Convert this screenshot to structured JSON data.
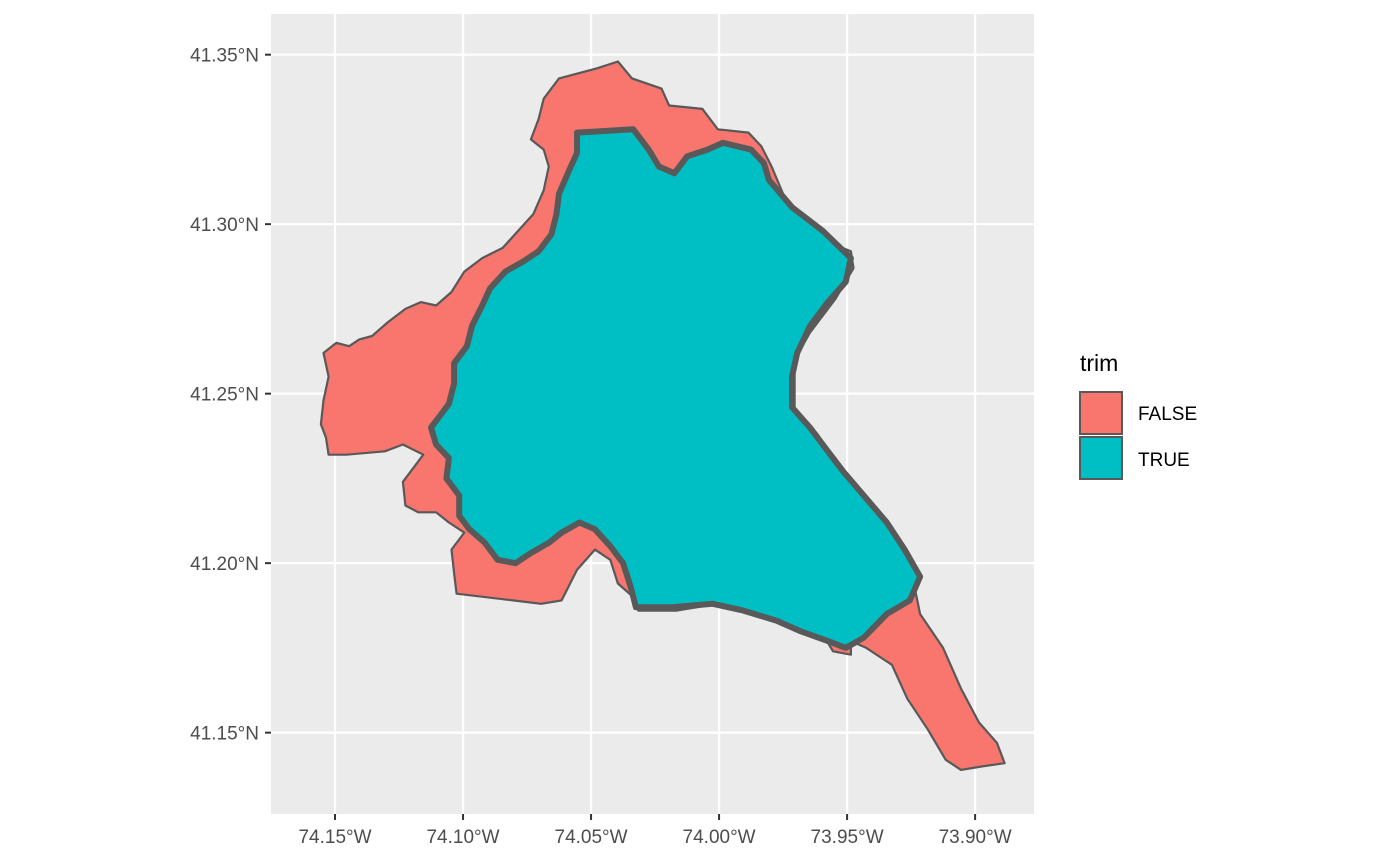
{
  "chart_data": {
    "type": "map",
    "title": "",
    "xlabel": "",
    "ylabel": "",
    "x_ticks": [
      {
        "value": -74.15,
        "label": "74.15°W"
      },
      {
        "value": -74.1,
        "label": "74.10°W"
      },
      {
        "value": -74.05,
        "label": "74.05°W"
      },
      {
        "value": -74.0,
        "label": "74.00°W"
      },
      {
        "value": -73.95,
        "label": "73.95°W"
      },
      {
        "value": -73.9,
        "label": "73.90°W"
      }
    ],
    "y_ticks": [
      {
        "value": 41.15,
        "label": "41.15°N"
      },
      {
        "value": 41.2,
        "label": "41.20°N"
      },
      {
        "value": 41.25,
        "label": "41.25°N"
      },
      {
        "value": 41.3,
        "label": "41.30°N"
      },
      {
        "value": 41.35,
        "label": "41.35°N"
      }
    ],
    "xlim": [
      -74.175,
      -73.877
    ],
    "ylim": [
      41.126,
      41.362
    ],
    "grid": true,
    "legend": {
      "title": "trim",
      "position": "right",
      "entries": [
        {
          "label": "FALSE",
          "color": "#F8766D"
        },
        {
          "label": "TRUE",
          "color": "#00BFC4"
        }
      ]
    },
    "colors": {
      "panel_background": "#EBEBEB",
      "grid": "#FFFFFF",
      "boundary": "#595959",
      "false_fill": "#F8766D",
      "true_fill": "#00BFC4"
    },
    "regions": [
      {
        "trim": "FALSE",
        "coords": [
          [
            -74.0625,
            41.343
          ],
          [
            -74.0475,
            41.346
          ],
          [
            -74.0395,
            41.348
          ],
          [
            -74.034,
            41.343
          ],
          [
            -74.0225,
            41.34
          ],
          [
            -74.0195,
            41.335
          ],
          [
            -74.0065,
            41.334
          ],
          [
            -74.0005,
            41.328
          ],
          [
            -73.9885,
            41.327
          ],
          [
            -73.9835,
            41.323
          ],
          [
            -73.9795,
            41.317
          ],
          [
            -73.9745,
            41.308
          ],
          [
            -73.9655,
            41.301
          ],
          [
            -73.9585,
            41.295
          ],
          [
            -73.9485,
            41.292
          ],
          [
            -73.9475,
            41.287
          ],
          [
            -73.9545,
            41.278
          ],
          [
            -73.9645,
            41.268
          ],
          [
            -73.9705,
            41.26
          ],
          [
            -73.9705,
            41.245
          ],
          [
            -73.9615,
            41.238
          ],
          [
            -73.9555,
            41.231
          ],
          [
            -73.9485,
            41.223
          ],
          [
            -73.9385,
            41.213
          ],
          [
            -73.9315,
            41.204
          ],
          [
            -73.9245,
            41.196
          ],
          [
            -73.9215,
            41.185
          ],
          [
            -73.9125,
            41.175
          ],
          [
            -73.9055,
            41.163
          ],
          [
            -73.8985,
            41.153
          ],
          [
            -73.8915,
            41.147
          ],
          [
            -73.8885,
            41.141
          ],
          [
            -73.8975,
            41.14
          ],
          [
            -73.9055,
            41.139
          ],
          [
            -73.9115,
            41.142
          ],
          [
            -73.9185,
            41.151
          ],
          [
            -73.9265,
            41.16
          ],
          [
            -73.9325,
            41.17
          ],
          [
            -73.9425,
            41.175
          ],
          [
            -73.9485,
            41.177
          ],
          [
            -73.9485,
            41.173
          ],
          [
            -73.9555,
            41.174
          ],
          [
            -73.9595,
            41.179
          ],
          [
            -73.9685,
            41.18
          ],
          [
            -73.9745,
            41.184
          ],
          [
            -73.9875,
            41.187
          ],
          [
            -74.0005,
            41.188
          ],
          [
            -74.0165,
            41.186
          ],
          [
            -74.0315,
            41.186
          ],
          [
            -74.0335,
            41.19
          ],
          [
            -74.0395,
            41.194
          ],
          [
            -74.0425,
            41.201
          ],
          [
            -74.0485,
            41.204
          ],
          [
            -74.0555,
            41.198
          ],
          [
            -74.0615,
            41.189
          ],
          [
            -74.0695,
            41.188
          ],
          [
            -74.0805,
            41.189
          ],
          [
            -74.1025,
            41.191
          ],
          [
            -74.1035,
            41.197
          ],
          [
            -74.1045,
            41.204
          ],
          [
            -74.0995,
            41.209
          ],
          [
            -74.1055,
            41.212
          ],
          [
            -74.1105,
            41.215
          ],
          [
            -74.1175,
            41.215
          ],
          [
            -74.1225,
            41.217
          ],
          [
            -74.1235,
            41.224
          ],
          [
            -74.1185,
            41.229
          ],
          [
            -74.1155,
            41.232
          ],
          [
            -74.1235,
            41.235
          ],
          [
            -74.1305,
            41.233
          ],
          [
            -74.1455,
            41.232
          ],
          [
            -74.1525,
            41.232
          ],
          [
            -74.1535,
            41.237
          ],
          [
            -74.1555,
            41.241
          ],
          [
            -74.1545,
            41.248
          ],
          [
            -74.1525,
            41.255
          ],
          [
            -74.1545,
            41.262
          ],
          [
            -74.1495,
            41.265
          ],
          [
            -74.1445,
            41.264
          ],
          [
            -74.1405,
            41.266
          ],
          [
            -74.1355,
            41.267
          ],
          [
            -74.1295,
            41.271
          ],
          [
            -74.1225,
            41.275
          ],
          [
            -74.1165,
            41.277
          ],
          [
            -74.1105,
            41.276
          ],
          [
            -74.1045,
            41.28
          ],
          [
            -74.0995,
            41.286
          ],
          [
            -74.0925,
            41.29
          ],
          [
            -74.0845,
            41.293
          ],
          [
            -74.0785,
            41.298
          ],
          [
            -74.0725,
            41.303
          ],
          [
            -74.0685,
            41.31
          ],
          [
            -74.0665,
            41.317
          ],
          [
            -74.0685,
            41.322
          ],
          [
            -74.0735,
            41.325
          ],
          [
            -74.0705,
            41.331
          ],
          [
            -74.0685,
            41.337
          ],
          [
            -74.0625,
            41.343
          ]
        ],
        "bold": false
      },
      {
        "trim": "TRUE",
        "coords": [
          [
            -74.0555,
            41.327
          ],
          [
            -74.0335,
            41.328
          ],
          [
            -74.0275,
            41.322
          ],
          [
            -74.0235,
            41.317
          ],
          [
            -74.0175,
            41.315
          ],
          [
            -74.0125,
            41.32
          ],
          [
            -74.0045,
            41.322
          ],
          [
            -73.9985,
            41.324
          ],
          [
            -73.9875,
            41.322
          ],
          [
            -73.9825,
            41.318
          ],
          [
            -73.9805,
            41.313
          ],
          [
            -73.9715,
            41.305
          ],
          [
            -73.9595,
            41.298
          ],
          [
            -73.9485,
            41.29
          ],
          [
            -73.9505,
            41.283
          ],
          [
            -73.9575,
            41.277
          ],
          [
            -73.9645,
            41.27
          ],
          [
            -73.9695,
            41.262
          ],
          [
            -73.9715,
            41.255
          ],
          [
            -73.9715,
            41.246
          ],
          [
            -73.9645,
            41.24
          ],
          [
            -73.9585,
            41.234
          ],
          [
            -73.9515,
            41.227
          ],
          [
            -73.9435,
            41.22
          ],
          [
            -73.9345,
            41.212
          ],
          [
            -73.9275,
            41.204
          ],
          [
            -73.9215,
            41.196
          ],
          [
            -73.9255,
            41.189
          ],
          [
            -73.9345,
            41.185
          ],
          [
            -73.9435,
            41.178
          ],
          [
            -73.9505,
            41.175
          ],
          [
            -73.9575,
            41.177
          ],
          [
            -73.9685,
            41.18
          ],
          [
            -73.9775,
            41.183
          ],
          [
            -73.9905,
            41.186
          ],
          [
            -74.0025,
            41.188
          ],
          [
            -74.0185,
            41.187
          ],
          [
            -74.0325,
            41.187
          ],
          [
            -74.0345,
            41.193
          ],
          [
            -74.0375,
            41.2
          ],
          [
            -74.0425,
            41.205
          ],
          [
            -74.0485,
            41.21
          ],
          [
            -74.0545,
            41.212
          ],
          [
            -74.0615,
            41.209
          ],
          [
            -74.0665,
            41.206
          ],
          [
            -74.0735,
            41.203
          ],
          [
            -74.0795,
            41.2
          ],
          [
            -74.0865,
            41.201
          ],
          [
            -74.0915,
            41.206
          ],
          [
            -74.0975,
            41.21
          ],
          [
            -74.1015,
            41.214
          ],
          [
            -74.1015,
            41.22
          ],
          [
            -74.1065,
            41.225
          ],
          [
            -74.1055,
            41.231
          ],
          [
            -74.1105,
            41.235
          ],
          [
            -74.1125,
            41.24
          ],
          [
            -74.1085,
            41.244
          ],
          [
            -74.1055,
            41.247
          ],
          [
            -74.1035,
            41.253
          ],
          [
            -74.1035,
            41.259
          ],
          [
            -74.0985,
            41.264
          ],
          [
            -74.0965,
            41.27
          ],
          [
            -74.0925,
            41.276
          ],
          [
            -74.0895,
            41.281
          ],
          [
            -74.0835,
            41.286
          ],
          [
            -74.0765,
            41.289
          ],
          [
            -74.0705,
            41.292
          ],
          [
            -74.0655,
            41.297
          ],
          [
            -74.0635,
            41.303
          ],
          [
            -74.0625,
            41.309
          ],
          [
            -74.0585,
            41.316
          ],
          [
            -74.0555,
            41.321
          ],
          [
            -74.0555,
            41.327
          ]
        ],
        "bold": true
      }
    ]
  }
}
